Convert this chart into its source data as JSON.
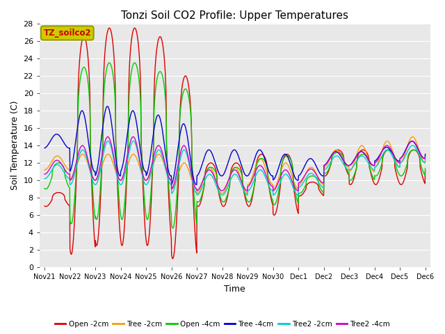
{
  "title": "Tonzi Soil CO2 Profile: Upper Temperatures",
  "xlabel": "Time",
  "ylabel": "Soil Temperature (C)",
  "ylim": [
    0,
    28
  ],
  "yticks": [
    0,
    2,
    4,
    6,
    8,
    10,
    12,
    14,
    16,
    18,
    20,
    22,
    24,
    26,
    28
  ],
  "fig_bg": "#ffffff",
  "plot_bg": "#e8e8e8",
  "series": [
    {
      "label": "Open -2cm",
      "color": "#dd0000"
    },
    {
      "label": "Tree -2cm",
      "color": "#ff9900"
    },
    {
      "label": "Open -4cm",
      "color": "#00cc00"
    },
    {
      "label": "Tree -4cm",
      "color": "#0000cc"
    },
    {
      "label": "Tree2 -2cm",
      "color": "#00cccc"
    },
    {
      "label": "Tree2 -4cm",
      "color": "#cc00cc"
    }
  ],
  "xtick_labels": [
    "Nov 21",
    "Nov 22",
    "Nov 23",
    "Nov 24",
    "Nov 25",
    "Nov 26",
    "Nov 27",
    "Nov 28",
    "Nov 29",
    "Nov 30",
    "Dec 1",
    "Dec 2",
    "Dec 3",
    "Dec 4",
    "Dec 5",
    "Dec 6"
  ],
  "tag_text": "TZ_soilco2",
  "tag_bg": "#cccc00",
  "tag_edge": "#999900",
  "grid_color": "#ffffff",
  "lw": 1.0
}
